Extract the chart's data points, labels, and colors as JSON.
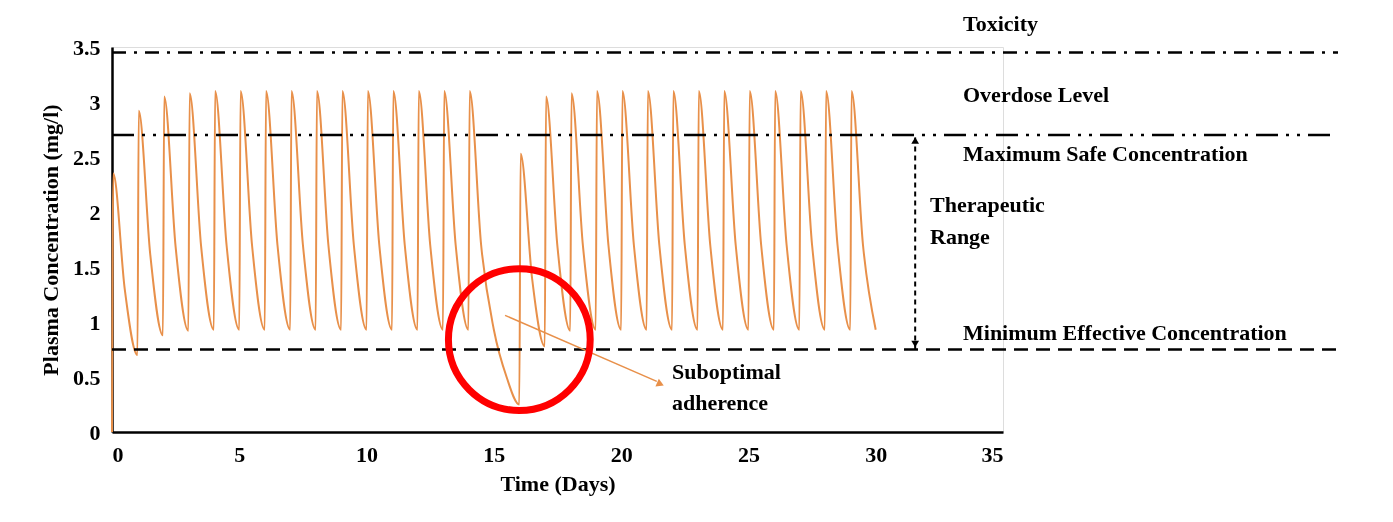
{
  "chart_data": {
    "type": "line",
    "xlabel": "Time (Days)",
    "ylabel": "Plasma Concentration (mg/l)",
    "xlim": [
      0,
      35
    ],
    "xticks": [
      0,
      5,
      10,
      15,
      20,
      25,
      30,
      35
    ],
    "ylim": [
      0,
      3.5
    ],
    "yticks": [
      0,
      0.5,
      1,
      1.5,
      2,
      2.5,
      3,
      3.5
    ],
    "grid": false,
    "legend": false,
    "marker": "none",
    "series": [
      {
        "color": "#e8904a",
        "line_style": "solid",
        "x": [
          0,
          0.05,
          0.5,
          1,
          1.05,
          1.5,
          2,
          2.05,
          2.5,
          3,
          3.05,
          3.5,
          4,
          4.05,
          4.5,
          5,
          5.05,
          5.5,
          6,
          6.05,
          6.5,
          7,
          7.05,
          7.5,
          8,
          8.05,
          8.5,
          9,
          9.05,
          9.5,
          10,
          10.05,
          10.5,
          11,
          11.05,
          11.5,
          12,
          12.05,
          12.5,
          13,
          13.05,
          13.5,
          14,
          14.05,
          14.5,
          15,
          15.5,
          16,
          16.05,
          16.5,
          17,
          17.05,
          17.5,
          18,
          18.05,
          18.5,
          19,
          19.05,
          19.5,
          20,
          20.05,
          20.5,
          21,
          21.05,
          21.5,
          22,
          22.05,
          22.5,
          23,
          23.05,
          23.5,
          24,
          24.05,
          24.5,
          25,
          25.05,
          25.5,
          26,
          26.05,
          26.5,
          27,
          27.05,
          27.5,
          28,
          28.05,
          28.5,
          29,
          29.05,
          29.5,
          30
        ],
        "values": [
          0,
          2.35,
          1.3,
          0.7,
          2.92,
          1.62,
          0.88,
          3.05,
          1.68,
          0.92,
          3.08,
          1.69,
          0.93,
          3.1,
          1.7,
          0.93,
          3.1,
          1.7,
          0.93,
          3.1,
          1.7,
          0.93,
          3.1,
          1.7,
          0.93,
          3.1,
          1.7,
          0.93,
          3.1,
          1.7,
          0.93,
          3.1,
          1.7,
          0.93,
          3.1,
          1.7,
          0.93,
          3.1,
          1.7,
          0.93,
          3.1,
          1.7,
          0.93,
          3.1,
          1.7,
          0.93,
          0.5,
          0.25,
          2.53,
          1.4,
          0.78,
          3.05,
          1.68,
          0.92,
          3.08,
          1.69,
          0.93,
          3.1,
          1.7,
          0.93,
          3.1,
          1.7,
          0.93,
          3.1,
          1.7,
          0.93,
          3.1,
          1.7,
          0.93,
          3.1,
          1.7,
          0.93,
          3.1,
          1.7,
          0.93,
          3.1,
          1.7,
          0.93,
          3.1,
          1.7,
          0.93,
          3.1,
          1.7,
          0.93,
          3.1,
          1.7,
          0.93,
          3.1,
          1.7,
          0.93
        ]
      }
    ],
    "ref_lines": [
      {
        "axis": "y",
        "value": 3.45,
        "label": "Toxicity",
        "line_style": "dashdot",
        "color": "#000000"
      },
      {
        "axis": "y",
        "value": 2.7,
        "label": "Maximum Safe Concentration",
        "line_style": "dashdotdot",
        "color": "#000000"
      },
      {
        "axis": "y",
        "value": 0.75,
        "label": "Minimum Effective Concentration",
        "line_style": "dashed",
        "color": "#000000"
      }
    ],
    "annotations": [
      "Overdose Level",
      "Therapeutic Range",
      "Suboptimal adherence"
    ]
  }
}
